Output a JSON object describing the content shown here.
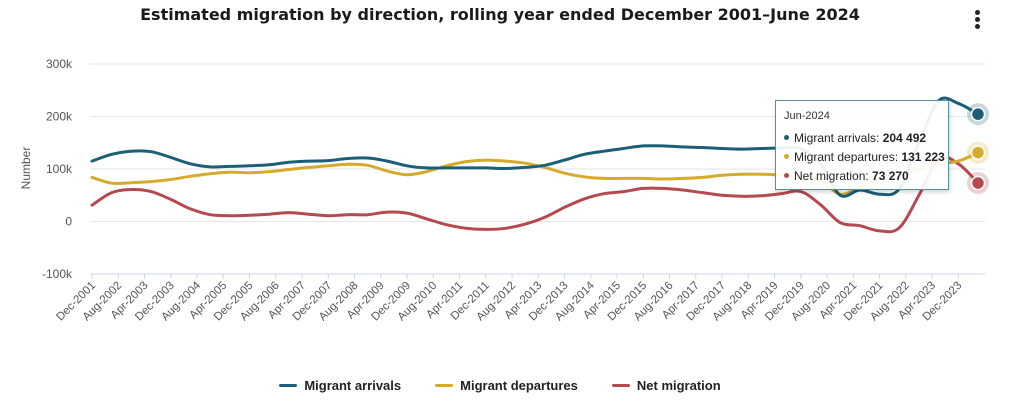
{
  "title": "Estimated migration by direction, rolling year ended December 2001–June 2024",
  "menu_icon": "kebab-menu-icon",
  "chart_data": {
    "type": "line",
    "title": "Estimated migration by direction, rolling year ended December 2001–June 2024",
    "ylabel": "Number",
    "xlabel": "",
    "ylim": [
      -100000,
      300000
    ],
    "yticks": [
      -100000,
      0,
      100000,
      200000,
      300000
    ],
    "ytick_labels": [
      "-100k",
      "0",
      "100k",
      "200k",
      "300k"
    ],
    "grid": true,
    "legend_position": "bottom",
    "x_start": "Dec-2001",
    "x_step_months": 6,
    "x_tick_labels": [
      "Dec-2001",
      "Aug-2002",
      "Apr-2003",
      "Dec-2003",
      "Aug-2004",
      "Apr-2005",
      "Dec-2005",
      "Aug-2006",
      "Apr-2007",
      "Dec-2007",
      "Aug-2008",
      "Apr-2009",
      "Dec-2009",
      "Aug-2010",
      "Apr-2011",
      "Dec-2011",
      "Aug-2012",
      "Apr-2013",
      "Dec-2013",
      "Aug-2014",
      "Apr-2015",
      "Dec-2015",
      "Aug-2016",
      "Apr-2017",
      "Dec-2017",
      "Aug-2018",
      "Apr-2019",
      "Dec-2019",
      "Aug-2020",
      "Apr-2021",
      "Dec-2021",
      "Aug-2022",
      "Apr-2023",
      "Dec-2023"
    ],
    "x": [
      "Dec-2001",
      "Jun-2002",
      "Dec-2002",
      "Jun-2003",
      "Dec-2003",
      "Jun-2004",
      "Dec-2004",
      "Jun-2005",
      "Dec-2005",
      "Jun-2006",
      "Dec-2006",
      "Jun-2007",
      "Dec-2007",
      "Jun-2008",
      "Dec-2008",
      "Jun-2009",
      "Dec-2009",
      "Jun-2010",
      "Dec-2010",
      "Jun-2011",
      "Dec-2011",
      "Jun-2012",
      "Dec-2012",
      "Jun-2013",
      "Dec-2013",
      "Jun-2014",
      "Dec-2014",
      "Jun-2015",
      "Dec-2015",
      "Jun-2016",
      "Dec-2016",
      "Jun-2017",
      "Dec-2017",
      "Jun-2018",
      "Dec-2018",
      "Jun-2019",
      "Dec-2019",
      "Jun-2020",
      "Dec-2020",
      "Jun-2021",
      "Dec-2021",
      "Jun-2022",
      "Dec-2022",
      "Jun-2023",
      "Dec-2023",
      "Jun-2024"
    ],
    "series": [
      {
        "name": "Migrant arrivals",
        "color": "#1b5e77",
        "values": [
          115000,
          128000,
          134000,
          133000,
          122000,
          110000,
          104000,
          105000,
          106000,
          108000,
          113000,
          115000,
          116000,
          120000,
          121000,
          115000,
          106000,
          102000,
          102000,
          102000,
          102000,
          101000,
          103000,
          107000,
          117000,
          128000,
          134000,
          139000,
          144000,
          144000,
          142000,
          141000,
          139000,
          138000,
          139000,
          140000,
          139000,
          110000,
          50000,
          60000,
          52000,
          62000,
          150000,
          230000,
          225000,
          204492
        ]
      },
      {
        "name": "Migrant departures",
        "color": "#d4ab2b",
        "values": [
          84000,
          73000,
          74000,
          76000,
          80000,
          86000,
          91000,
          94000,
          93000,
          95000,
          99000,
          103000,
          106000,
          109000,
          107000,
          96000,
          89000,
          95000,
          106000,
          114000,
          117000,
          115000,
          111000,
          103000,
          92000,
          85000,
          82000,
          82000,
          82000,
          81000,
          82000,
          84000,
          88000,
          90000,
          90000,
          88000,
          82000,
          78000,
          52000,
          66000,
          82000,
          92000,
          100000,
          110000,
          115000,
          131223
        ]
      },
      {
        "name": "Net migration",
        "color": "#b5494f",
        "values": [
          31000,
          55000,
          61000,
          57000,
          42000,
          24000,
          13000,
          11000,
          12000,
          14000,
          17000,
          14000,
          11000,
          13000,
          13000,
          18000,
          16000,
          5000,
          -6000,
          -13000,
          -15000,
          -13000,
          -5000,
          8000,
          27000,
          43000,
          53000,
          57000,
          63000,
          63000,
          60000,
          55000,
          50000,
          48000,
          49000,
          53000,
          57000,
          32000,
          -2000,
          -8000,
          -18000,
          -12000,
          50000,
          120000,
          110000,
          73270
        ]
      }
    ],
    "tooltip": {
      "header": "Jun-2024",
      "rows": [
        {
          "label": "Migrant arrivals: ",
          "value": "204 492",
          "color": "#1b5e77"
        },
        {
          "label": "Migrant departures: ",
          "value": "131 223",
          "color": "#d4ab2b"
        },
        {
          "label": "Net migration: ",
          "value": "73 270",
          "color": "#b5494f"
        }
      ]
    }
  },
  "legend": [
    {
      "label": "Migrant arrivals",
      "color": "#1b5e77"
    },
    {
      "label": "Migrant departures",
      "color": "#d4ab2b"
    },
    {
      "label": "Net migration",
      "color": "#b5494f"
    }
  ]
}
